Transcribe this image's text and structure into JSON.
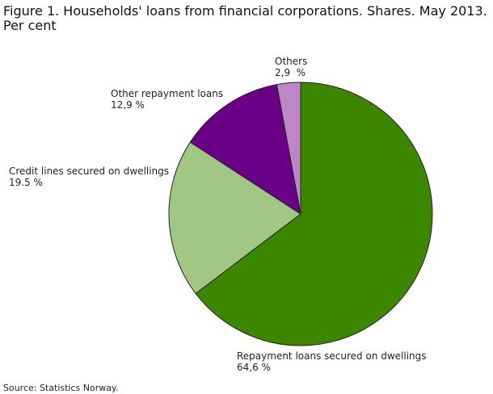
{
  "chart_data": {
    "type": "pie",
    "title": "Figure 1. Households' loans from financial corporations. Shares. May 2013.",
    "subtitle": "Per cent",
    "categories": [
      "Repayment loans secured on dwellings",
      "Credit lines secured on dwellings",
      "Other repayment loans",
      "Others"
    ],
    "values": [
      64.6,
      19.5,
      12.9,
      2.9
    ],
    "value_labels": [
      "64,6 %",
      "19.5 %",
      "12,9 %",
      "2,9  %"
    ],
    "colors": [
      "#3d8700",
      "#a2c683",
      "#690087",
      "#bd87c7"
    ],
    "source": "Source: Statistics Norway."
  }
}
